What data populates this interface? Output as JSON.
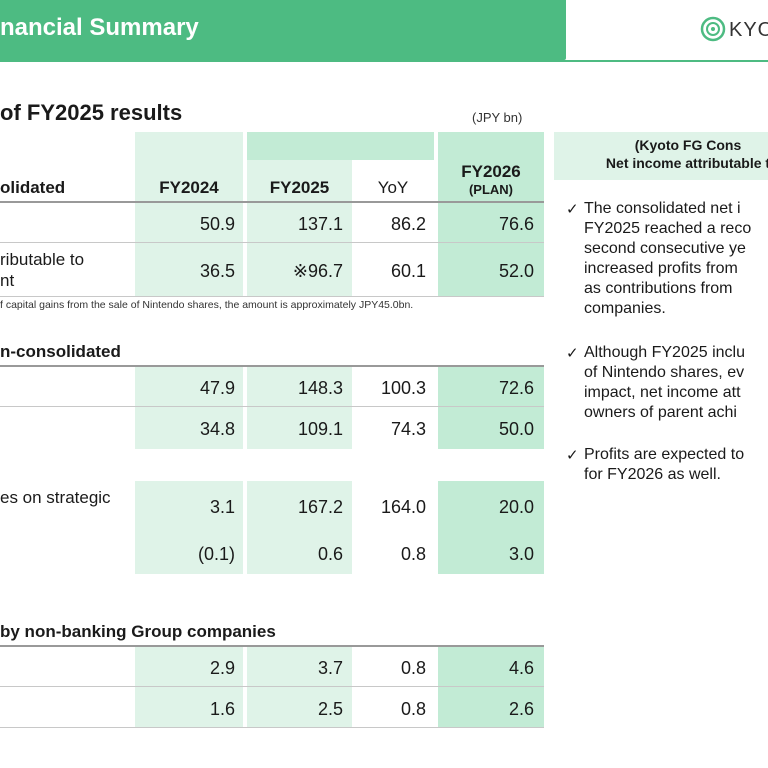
{
  "header": {
    "title": "nancial Summary",
    "logo_text": "KYOTO",
    "brand_color": "#4dbb82"
  },
  "section1": {
    "title": "of FY2025 results",
    "unit": "(JPY bn)",
    "row_header": "olidated",
    "columns": [
      "FY2024",
      "FY2025",
      "YoY",
      "FY2026",
      "(PLAN)"
    ],
    "rows": [
      {
        "label": "",
        "fy2024": "50.9",
        "fy2025": "137.1",
        "yoy": "86.2",
        "fy2026": "76.6"
      },
      {
        "label_line1": "ributable to",
        "label_line2": "nt",
        "fy2024": "36.5",
        "fy2025": "※96.7",
        "yoy": "60.1",
        "fy2026": "52.0"
      }
    ],
    "note": "f capital gains from the sale of Nintendo shares, the amount is approximately JPY45.0bn."
  },
  "section2": {
    "title": "n-consolidated",
    "rows": [
      {
        "label": "",
        "fy2024": "47.9",
        "fy2025": "148.3",
        "yoy": "100.3",
        "fy2026": "72.6"
      },
      {
        "label": "",
        "fy2024": "34.8",
        "fy2025": "109.1",
        "yoy": "74.3",
        "fy2026": "50.0"
      },
      {
        "label": "es on strategic",
        "fy2024": "3.1",
        "fy2025": "167.2",
        "yoy": "164.0",
        "fy2026": "20.0"
      },
      {
        "label": "",
        "fy2024": "(0.1)",
        "fy2025": "0.6",
        "yoy": "0.8",
        "fy2026": "3.0"
      }
    ]
  },
  "section3": {
    "title": "by non-banking Group companies",
    "rows": [
      {
        "fy2024": "2.9",
        "fy2025": "3.7",
        "yoy": "0.8",
        "fy2026": "4.6"
      },
      {
        "fy2024": "1.6",
        "fy2025": "2.5",
        "yoy": "0.8",
        "fy2026": "2.6"
      }
    ]
  },
  "right_panel": {
    "head_line1": "(Kyoto FG Cons",
    "head_line2": "Net income attributable t",
    "check": "✓",
    "bullets": [
      [
        "The consolidated net i",
        "FY2025 reached a reco",
        "second consecutive ye",
        "increased profits from",
        "as contributions from",
        "companies."
      ],
      [
        "Although FY2025 inclu",
        "of Nintendo shares, ev",
        "impact, net income att",
        "owners of parent achi"
      ],
      [
        "Profits are expected to",
        "for FY2026 as well."
      ]
    ]
  }
}
